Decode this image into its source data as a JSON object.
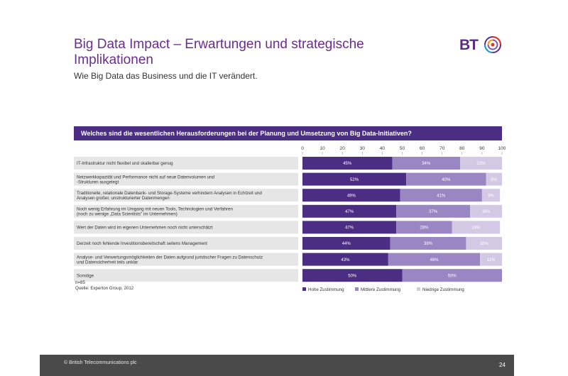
{
  "slide": {
    "title": "Big Data Impact – Erwartungen und strategische Implikationen",
    "subtitle": "Wie Big Data das Business und die IT verändert.",
    "logo_text": "BT"
  },
  "footer": {
    "copyright": "© British Telecommunications plc",
    "page_number": "24"
  },
  "colors": {
    "header_bg": "#4b2e83",
    "high": "#4b2e83",
    "medium": "#9b86c4",
    "low": "#d3c9e4",
    "row_label_bg": "#e6e6e6"
  },
  "chart_data": {
    "type": "bar",
    "orientation": "horizontal-stacked",
    "title": "Welches sind die wesentlichen Herausforderungen bei der Planung und Umsetzung von Big Data-Initiativen?",
    "xlim": [
      0,
      100
    ],
    "ticks": [
      "0",
      "10",
      "20",
      "30",
      "40",
      "50",
      "60",
      "70",
      "80",
      "90",
      "100"
    ],
    "categories": [
      [
        "IT-Infrastruktur nicht flexibel und skalierbar genug"
      ],
      [
        "Netzwerkkapazität und Performance nicht auf neue Datenvolumen und",
        "-Strukturen ausgelegt"
      ],
      [
        "Traditionelle, relationale Datenbank- und Storage-Systeme verhindern Analysen in Echtzeit und",
        "Analysen großer, unstrukturierter Datenmengen"
      ],
      [
        "Noch wenig Erfahrung im Umgang mit neuen Tools, Technologien und Verfahren",
        "(noch zu wenige „Data Scientists\" im Unternehmen)"
      ],
      [
        "Wert der Daten wird im eigenen Unternehmen noch nicht unterschätzt"
      ],
      [
        "Derzeit noch fehlende Investitionsbereitschaft seitens Management"
      ],
      [
        "Analyse- und Verwertungsmöglichkeiten der Daten aufgrund juristischer Fragen zu Datenschutz",
        "und Datensicherheit teils unklar"
      ],
      [
        "Sonstige"
      ]
    ],
    "series": [
      {
        "name": "Hohe Zustimmung",
        "values": [
          45,
          52,
          49,
          47,
          47,
          44,
          43,
          50
        ],
        "labels": [
          "45%",
          "52%",
          "49%",
          "47%",
          "47%",
          "44%",
          "43%",
          "50%"
        ]
      },
      {
        "name": "Mittlere Zustimmung",
        "values": [
          34,
          40,
          41,
          37,
          28,
          38,
          46,
          50
        ],
        "labels": [
          "34%",
          "40%",
          "41%",
          "37%",
          "28%",
          "38%",
          "46%",
          "50%"
        ]
      },
      {
        "name": "Niedrige Zustimmung",
        "values": [
          22,
          8,
          9,
          16,
          24,
          18,
          11,
          0
        ],
        "labels": [
          "22%",
          "8%",
          "9%",
          "16%",
          "24%",
          "18%",
          "11%",
          ""
        ]
      }
    ],
    "notes": [
      "n=85",
      "Quelle: Experton Group, 2012"
    ]
  }
}
